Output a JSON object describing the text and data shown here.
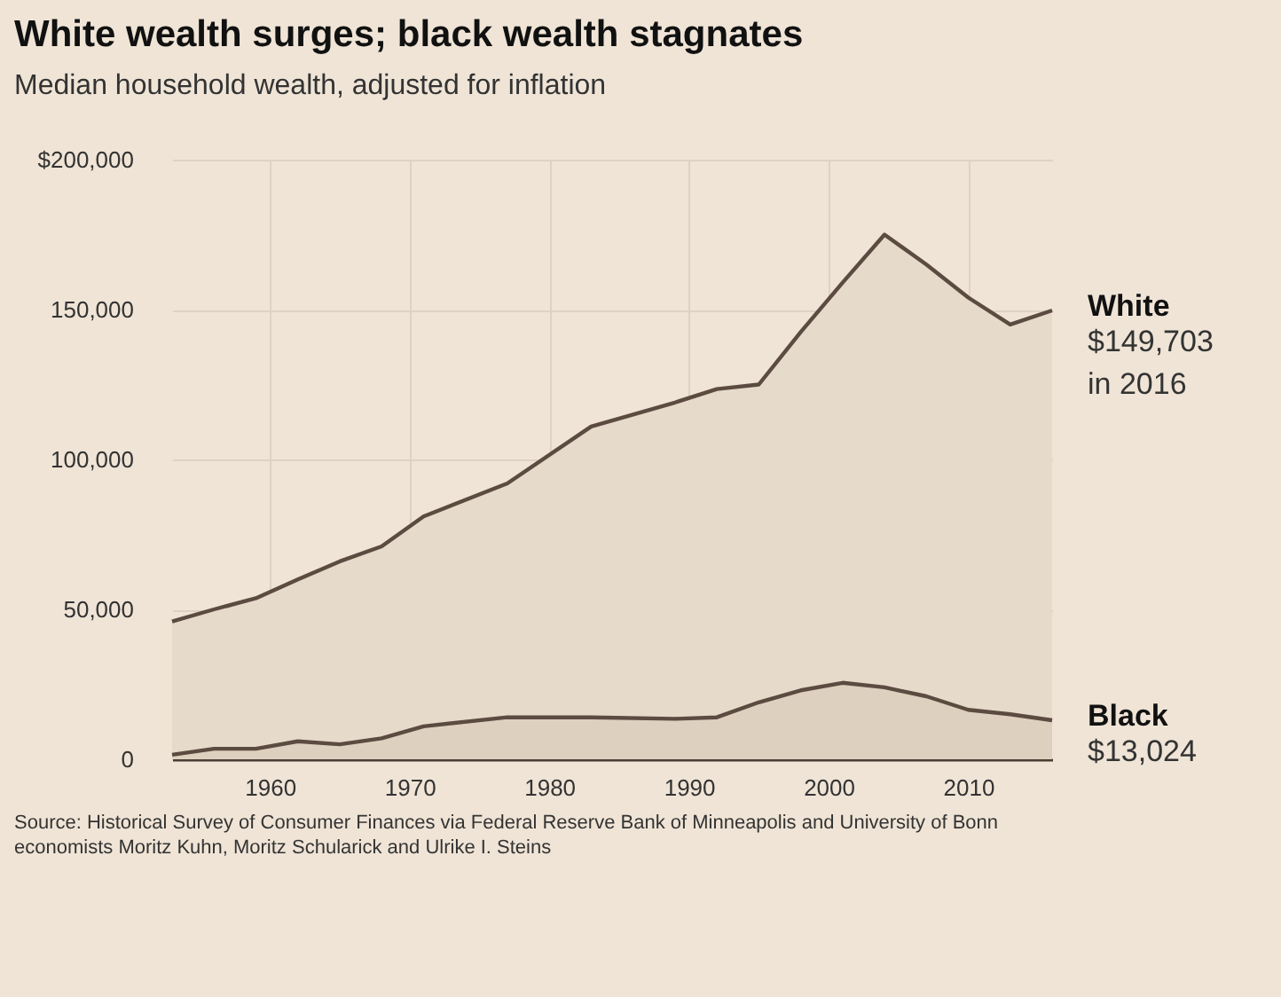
{
  "chart_data": {
    "type": "area",
    "title": "White wealth surges; black wealth stagnates",
    "subtitle": "Median household wealth, adjusted for inflation",
    "x": [
      1953,
      1956,
      1959,
      1962,
      1965,
      1968,
      1971,
      1977,
      1983,
      1989,
      1992,
      1995,
      1998,
      2001,
      2004,
      2007,
      2010,
      2013,
      2016
    ],
    "series": [
      {
        "name": "White",
        "color": "#5b4b40",
        "values": [
          46000,
          50000,
          53700,
          60000,
          66000,
          71000,
          81000,
          92000,
          111000,
          119000,
          123500,
          125000,
          142500,
          159000,
          175000,
          165000,
          154000,
          145000,
          149703
        ]
      },
      {
        "name": "Black",
        "color": "#5b4b40",
        "values": [
          1500,
          3500,
          3500,
          6000,
          5000,
          7000,
          11000,
          14000,
          14000,
          13500,
          14000,
          19000,
          23000,
          25500,
          24000,
          21000,
          16500,
          15000,
          13024
        ]
      }
    ],
    "xlim": [
      1953,
      2016
    ],
    "xticks": [
      1960,
      1970,
      1980,
      1990,
      2000,
      2010
    ],
    "ylim": [
      0,
      200000
    ],
    "yticks": [
      {
        "value": 0,
        "label": "0"
      },
      {
        "value": 50000,
        "label": "50,000"
      },
      {
        "value": 100000,
        "label": "100,000"
      },
      {
        "value": 150000,
        "label": "150,000"
      },
      {
        "value": 200000,
        "label": "$200,000"
      }
    ],
    "grid": true,
    "annotations": [
      {
        "text": "$149,703\nin 2016",
        "x": 2016,
        "y": 149703
      },
      {
        "text": "$13,024",
        "x": 2016,
        "y": 13024
      },
      "Source: Historical Survey of Consumer Finances via Federal Reserve Bank of Minneapolis and University of Bonn economists Moritz Kuhn, Moritz Schularick and Ulrike I. Steins"
    ]
  }
}
